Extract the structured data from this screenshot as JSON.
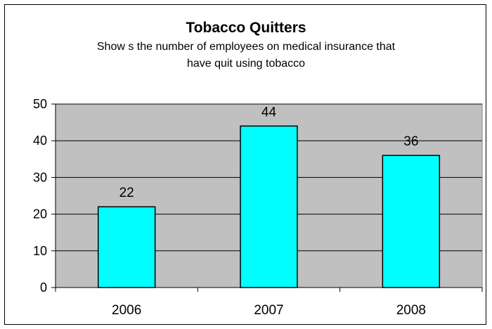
{
  "chart_data": {
    "type": "bar",
    "title": "Tobacco Quitters",
    "subtitle_lines": [
      "Show s the number of employees on medical insurance that",
      "have quit using tobacco"
    ],
    "categories": [
      "2006",
      "2007",
      "2008"
    ],
    "values": [
      22,
      44,
      36
    ],
    "data_labels": [
      "22",
      "44",
      "36"
    ],
    "xlabel": "",
    "ylabel": "",
    "ylim": [
      0,
      50
    ],
    "yticks": [
      "0",
      "10",
      "20",
      "30",
      "40",
      "50"
    ],
    "grid": true,
    "legend": "none",
    "colors": {
      "bar_fill": "#00FFFF",
      "bar_stroke": "#000000",
      "plot_background": "#C0C0C0",
      "gridline": "#000000"
    }
  }
}
